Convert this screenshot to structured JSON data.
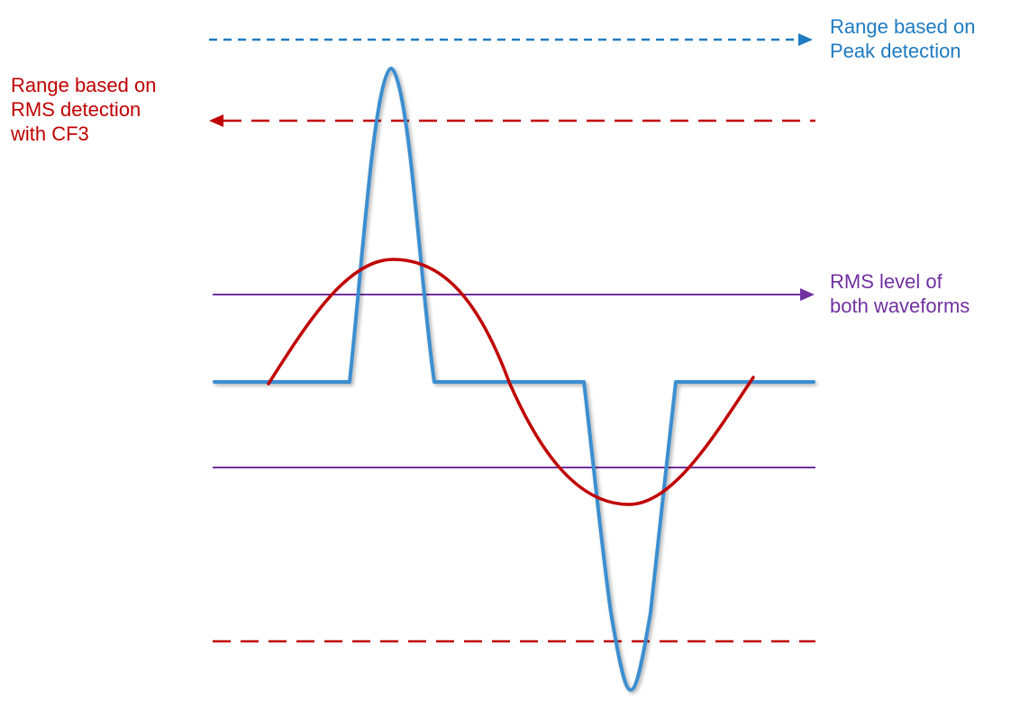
{
  "labels": {
    "peak_range": [
      "Range based on",
      "Peak detection"
    ],
    "rms_cf3_range": [
      "Range based on",
      "RMS detection",
      "with CF3"
    ],
    "rms_level": [
      "RMS level of",
      "both waveforms"
    ]
  },
  "colors": {
    "peak": "#1F7BC1",
    "rms_cf3": "#C00000",
    "rms_level": "#7030A0",
    "pulse_wave": "#3A8ED0",
    "sine_wave": "#C00000",
    "background": "#FFFFFF"
  },
  "icons": {
    "peak_arrow": "arrow-right-icon",
    "rms_cf3_arrow": "arrow-left-icon",
    "rms_level_arrow": "arrow-right-icon"
  }
}
